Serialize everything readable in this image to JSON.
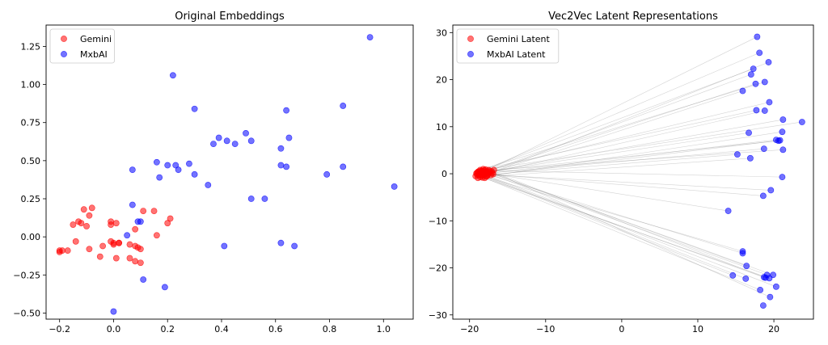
{
  "chart_data": [
    {
      "type": "scatter",
      "title": "Original Embeddings",
      "xlabel": "",
      "ylabel": "",
      "xlim": [
        -0.25,
        1.11
      ],
      "ylim": [
        -0.54,
        1.39
      ],
      "xticks": [
        -0.2,
        0.0,
        0.2,
        0.4,
        0.6,
        0.8,
        1.0
      ],
      "xtick_labels": [
        "−0.2",
        "0.0",
        "0.2",
        "0.4",
        "0.6",
        "0.8",
        "1.0"
      ],
      "yticks": [
        -0.5,
        -0.25,
        0.0,
        0.25,
        0.5,
        0.75,
        1.0,
        1.25
      ],
      "ytick_labels": [
        "−0.50",
        "−0.25",
        "0.00",
        "0.25",
        "0.50",
        "0.75",
        "1.00",
        "1.25"
      ],
      "grid": false,
      "legend_position": "top-left",
      "series": [
        {
          "name": "Gemini",
          "color": "#ff0000",
          "points": [
            [
              -0.2,
              -0.09
            ],
            [
              -0.19,
              -0.09
            ],
            [
              -0.2,
              -0.1
            ],
            [
              -0.17,
              -0.09
            ],
            [
              -0.15,
              0.08
            ],
            [
              -0.14,
              -0.03
            ],
            [
              -0.13,
              0.1
            ],
            [
              -0.12,
              0.09
            ],
            [
              -0.11,
              0.18
            ],
            [
              -0.1,
              0.07
            ],
            [
              -0.09,
              -0.08
            ],
            [
              -0.09,
              0.14
            ],
            [
              -0.08,
              0.19
            ],
            [
              -0.05,
              -0.13
            ],
            [
              -0.04,
              -0.06
            ],
            [
              -0.01,
              0.1
            ],
            [
              -0.01,
              0.08
            ],
            [
              -0.01,
              -0.03
            ],
            [
              0.0,
              -0.05
            ],
            [
              0.0,
              -0.04
            ],
            [
              0.01,
              0.09
            ],
            [
              0.02,
              -0.04
            ],
            [
              0.01,
              -0.14
            ],
            [
              0.02,
              -0.04
            ],
            [
              0.06,
              -0.05
            ],
            [
              0.06,
              -0.14
            ],
            [
              0.08,
              -0.06
            ],
            [
              0.08,
              0.05
            ],
            [
              0.08,
              -0.16
            ],
            [
              0.09,
              -0.07
            ],
            [
              0.1,
              -0.08
            ],
            [
              0.1,
              -0.17
            ],
            [
              0.11,
              0.17
            ],
            [
              0.15,
              0.17
            ],
            [
              0.16,
              0.01
            ],
            [
              0.2,
              0.09
            ],
            [
              0.21,
              0.12
            ]
          ]
        },
        {
          "name": "MxbAI",
          "color": "#0000ff",
          "points": [
            [
              0.95,
              1.31
            ],
            [
              0.22,
              1.06
            ],
            [
              0.3,
              0.84
            ],
            [
              0.64,
              0.83
            ],
            [
              0.85,
              0.86
            ],
            [
              0.49,
              0.68
            ],
            [
              0.39,
              0.65
            ],
            [
              0.42,
              0.63
            ],
            [
              0.37,
              0.61
            ],
            [
              0.45,
              0.61
            ],
            [
              0.51,
              0.63
            ],
            [
              0.65,
              0.65
            ],
            [
              0.62,
              0.58
            ],
            [
              0.16,
              0.49
            ],
            [
              0.2,
              0.47
            ],
            [
              0.23,
              0.47
            ],
            [
              0.28,
              0.48
            ],
            [
              0.07,
              0.44
            ],
            [
              0.24,
              0.44
            ],
            [
              0.17,
              0.39
            ],
            [
              0.3,
              0.41
            ],
            [
              0.62,
              0.47
            ],
            [
              0.64,
              0.46
            ],
            [
              0.79,
              0.41
            ],
            [
              0.85,
              0.46
            ],
            [
              0.35,
              0.34
            ],
            [
              1.04,
              0.33
            ],
            [
              0.51,
              0.25
            ],
            [
              0.56,
              0.25
            ],
            [
              0.07,
              0.21
            ],
            [
              0.1,
              0.1
            ],
            [
              0.09,
              0.1
            ],
            [
              0.05,
              0.01
            ],
            [
              0.41,
              -0.06
            ],
            [
              0.62,
              -0.04
            ],
            [
              0.67,
              -0.06
            ],
            [
              0.11,
              -0.28
            ],
            [
              0.19,
              -0.33
            ],
            [
              0.0,
              -0.49
            ]
          ]
        }
      ]
    },
    {
      "type": "scatter",
      "title": "Vec2Vec Latent Representations",
      "xlabel": "",
      "ylabel": "",
      "xlim": [
        -22.2,
        25.2
      ],
      "ylim": [
        -30.9,
        31.6
      ],
      "xticks": [
        -20,
        -10,
        0,
        10,
        20
      ],
      "xtick_labels": [
        "−20",
        "−10",
        "0",
        "10",
        "20"
      ],
      "yticks": [
        -30,
        -20,
        -10,
        0,
        10,
        20,
        30
      ],
      "ytick_labels": [
        "−30",
        "−20",
        "−10",
        "0",
        "10",
        "20",
        "30"
      ],
      "grid": false,
      "legend_position": "top-left",
      "connecting_lines": true,
      "line_color": "#808080",
      "series": [
        {
          "name": "Gemini Latent",
          "color": "#ff0000",
          "points": [
            [
              -19.2,
              -0.5
            ],
            [
              -19.0,
              0.2
            ],
            [
              -18.9,
              -0.9
            ],
            [
              -18.8,
              0.5
            ],
            [
              -18.7,
              -0.2
            ],
            [
              -18.6,
              0.8
            ],
            [
              -18.5,
              0.1
            ],
            [
              -18.4,
              -0.4
            ],
            [
              -18.3,
              0.6
            ],
            [
              -18.2,
              1.0
            ],
            [
              -18.1,
              -0.1
            ],
            [
              -18.0,
              0.3
            ],
            [
              -17.9,
              0.9
            ],
            [
              -17.8,
              -0.6
            ],
            [
              -17.7,
              0.4
            ],
            [
              -17.5,
              0.1
            ],
            [
              -17.3,
              0.6
            ],
            [
              -17.2,
              -0.3
            ],
            [
              -17.0,
              0.2
            ],
            [
              -16.8,
              0.8
            ],
            [
              -16.9,
              -0.1
            ],
            [
              -18.6,
              -0.7
            ],
            [
              -18.1,
              0.7
            ],
            [
              -17.6,
              -0.2
            ],
            [
              -19.1,
              0.1
            ],
            [
              -18.4,
              0.3
            ],
            [
              -18.8,
              -0.3
            ],
            [
              -17.9,
              0.0
            ],
            [
              -17.4,
              0.3
            ],
            [
              -18.2,
              -0.4
            ],
            [
              -18.5,
              0.6
            ],
            [
              -17.8,
              0.5
            ],
            [
              -19.0,
              -0.2
            ],
            [
              -17.1,
              0.5
            ],
            [
              -18.3,
              -0.8
            ],
            [
              -17.7,
              -0.5
            ],
            [
              -18.9,
              0.4
            ],
            [
              -18.0,
              -0.9
            ],
            [
              -17.5,
              0.8
            ]
          ]
        },
        {
          "name": "MxbAI Latent",
          "color": "#0000ff",
          "points": [
            [
              17.8,
              29.1
            ],
            [
              18.1,
              25.7
            ],
            [
              19.3,
              23.7
            ],
            [
              17.3,
              22.3
            ],
            [
              17.0,
              21.1
            ],
            [
              18.8,
              19.5
            ],
            [
              17.6,
              19.1
            ],
            [
              15.9,
              17.6
            ],
            [
              19.4,
              15.2
            ],
            [
              17.7,
              13.5
            ],
            [
              18.8,
              13.4
            ],
            [
              21.2,
              11.5
            ],
            [
              23.7,
              11.0
            ],
            [
              21.1,
              8.9
            ],
            [
              16.7,
              8.7
            ],
            [
              20.3,
              7.2
            ],
            [
              20.6,
              7.0
            ],
            [
              20.8,
              7.1
            ],
            [
              18.7,
              5.3
            ],
            [
              21.2,
              5.1
            ],
            [
              15.2,
              4.1
            ],
            [
              16.9,
              3.3
            ],
            [
              21.1,
              -0.7
            ],
            [
              19.6,
              -3.5
            ],
            [
              18.6,
              -4.7
            ],
            [
              14.0,
              -7.9
            ],
            [
              15.9,
              -16.5
            ],
            [
              15.9,
              -16.9
            ],
            [
              16.4,
              -19.6
            ],
            [
              14.6,
              -21.6
            ],
            [
              19.1,
              -21.5
            ],
            [
              19.9,
              -21.5
            ],
            [
              18.7,
              -22.0
            ],
            [
              18.9,
              -22.1
            ],
            [
              19.4,
              -22.2
            ],
            [
              16.3,
              -22.3
            ],
            [
              20.3,
              -24.0
            ],
            [
              18.2,
              -24.7
            ],
            [
              19.5,
              -26.2
            ],
            [
              18.6,
              -28.0
            ]
          ]
        }
      ]
    }
  ]
}
